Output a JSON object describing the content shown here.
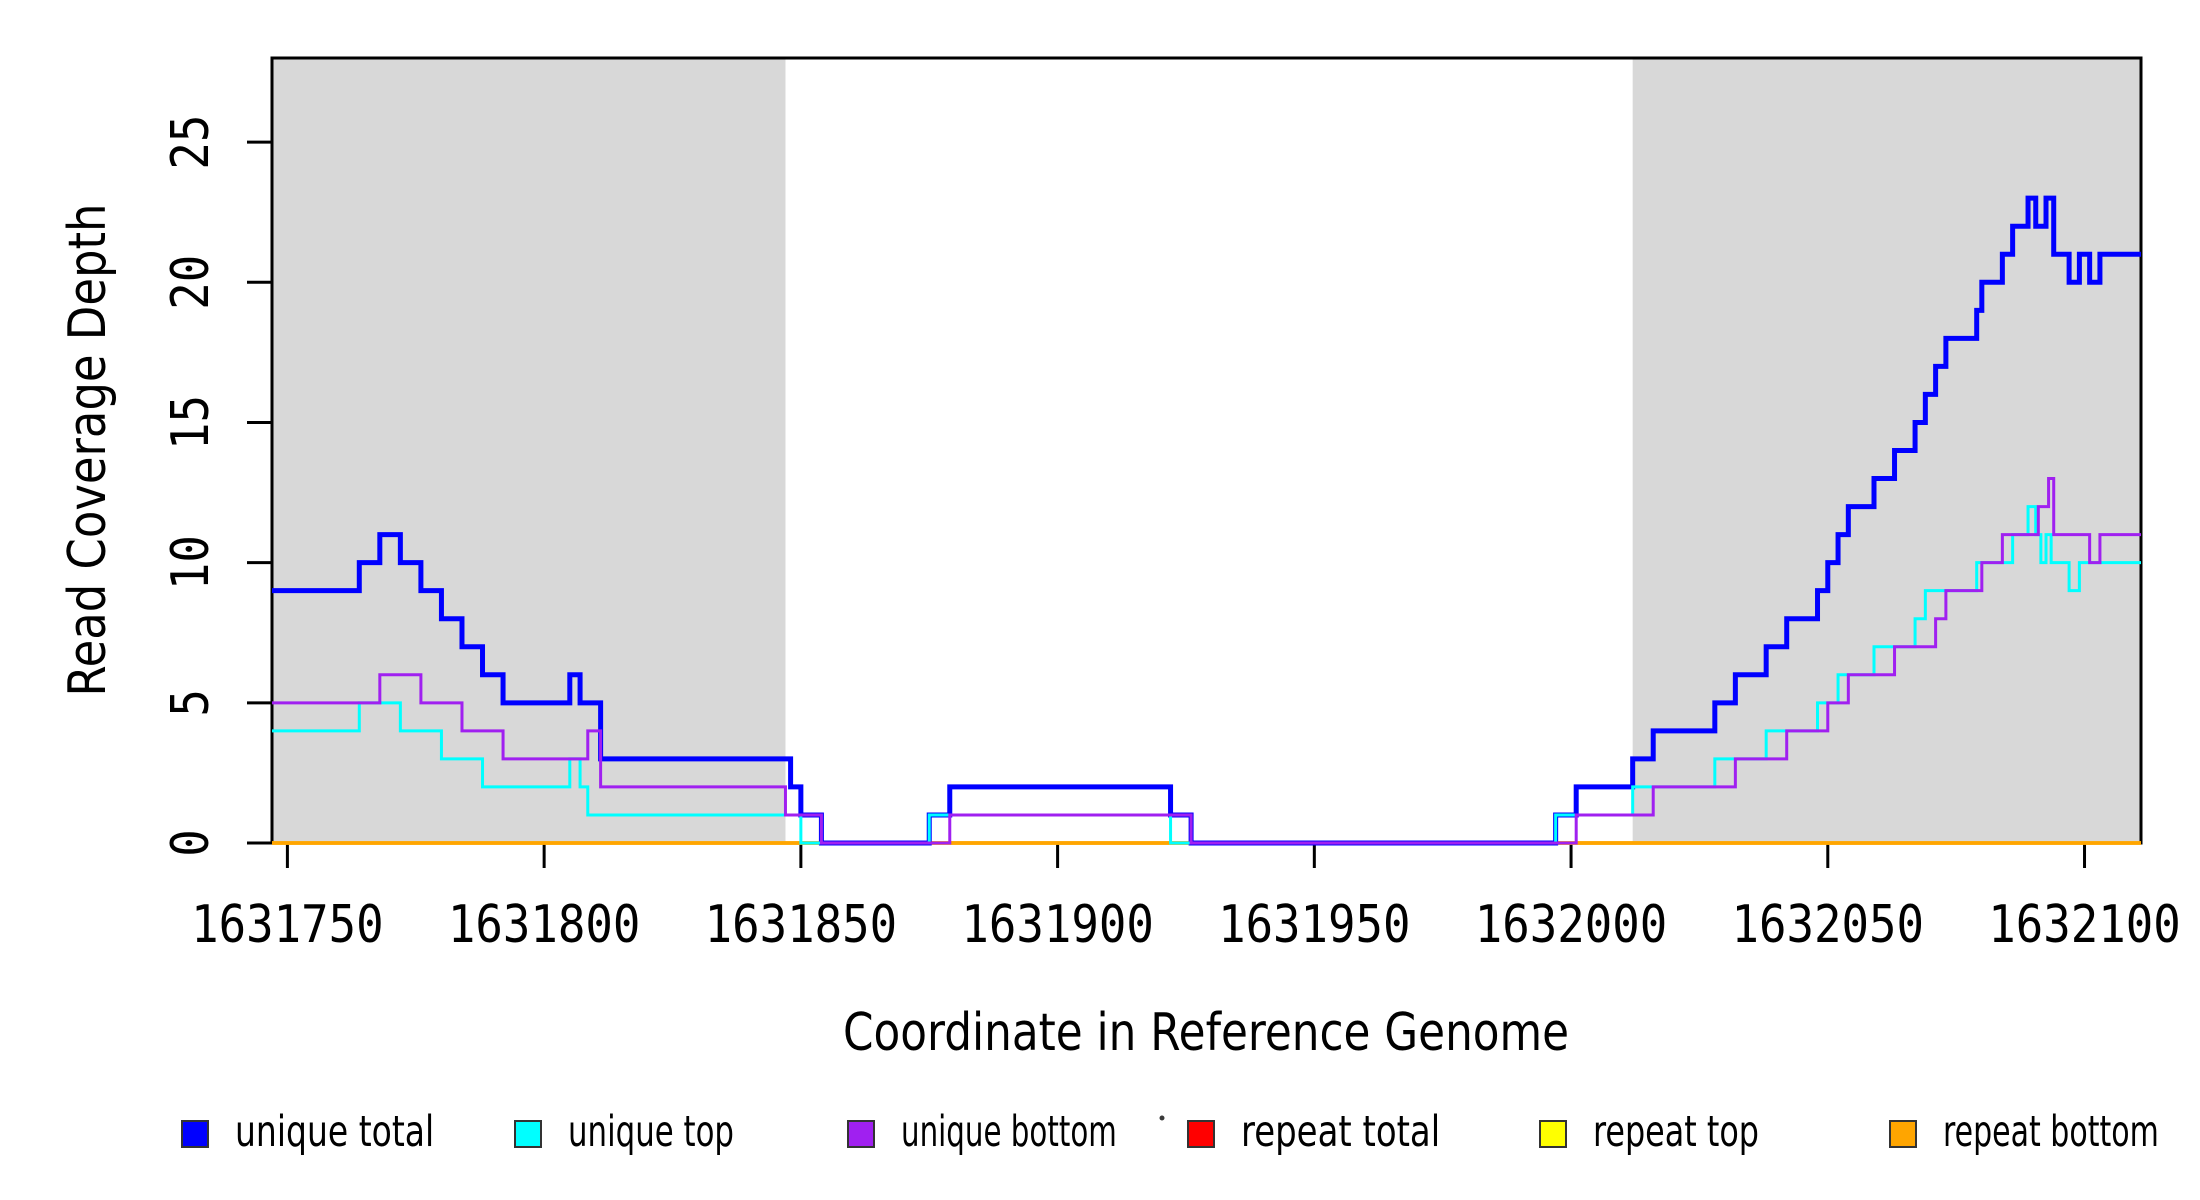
{
  "chart_data": {
    "type": "line",
    "subtype": "step-coverage",
    "title": "",
    "xlabel": "Coordinate in Reference Genome",
    "ylabel": "Read Coverage Depth",
    "xlim": [
      1631747,
      1632111
    ],
    "ylim": [
      0,
      28
    ],
    "x_ticks": [
      1631750,
      1631800,
      1631850,
      1631900,
      1631950,
      1632000,
      1632050,
      1632100
    ],
    "y_ticks": [
      0,
      5,
      10,
      15,
      20,
      25
    ],
    "grid": false,
    "legend_position": "bottom",
    "shade_color": "#D8D8D8",
    "shaded_regions": [
      [
        1631747,
        1631847
      ],
      [
        1632012,
        1632111
      ]
    ],
    "series": [
      {
        "name": "repeat total",
        "color": "#FF0000",
        "width": 3.5,
        "steps": [
          [
            1631747,
            0
          ]
        ]
      },
      {
        "name": "repeat top",
        "color": "#FFFF00",
        "width": 3.5,
        "steps": [
          [
            1631747,
            0
          ]
        ]
      },
      {
        "name": "repeat bottom",
        "color": "#FFA500",
        "width": 3.5,
        "steps": [
          [
            1631747,
            0
          ]
        ]
      },
      {
        "name": "unique total",
        "color": "#0000FF",
        "width": 5,
        "steps": [
          [
            1631747,
            9
          ],
          [
            1631764,
            10
          ],
          [
            1631768,
            11
          ],
          [
            1631772,
            10
          ],
          [
            1631776,
            9
          ],
          [
            1631780,
            8
          ],
          [
            1631784,
            7
          ],
          [
            1631788,
            6
          ],
          [
            1631792,
            5
          ],
          [
            1631805,
            6
          ],
          [
            1631807,
            5
          ],
          [
            1631811,
            3
          ],
          [
            1631848,
            2
          ],
          [
            1631850,
            1
          ],
          [
            1631854,
            0
          ],
          [
            1631875,
            1
          ],
          [
            1631879,
            2
          ],
          [
            1631922,
            1
          ],
          [
            1631926,
            0
          ],
          [
            1631997,
            1
          ],
          [
            1632001,
            2
          ],
          [
            1632012,
            3
          ],
          [
            1632016,
            4
          ],
          [
            1632028,
            5
          ],
          [
            1632032,
            6
          ],
          [
            1632038,
            7
          ],
          [
            1632042,
            8
          ],
          [
            1632048,
            9
          ],
          [
            1632050,
            10
          ],
          [
            1632052,
            11
          ],
          [
            1632054,
            12
          ],
          [
            1632059,
            13
          ],
          [
            1632063,
            14
          ],
          [
            1632067,
            15
          ],
          [
            1632069,
            16
          ],
          [
            1632071,
            17
          ],
          [
            1632073,
            18
          ],
          [
            1632079,
            19
          ],
          [
            1632080,
            20
          ],
          [
            1632084,
            21
          ],
          [
            1632086,
            22
          ],
          [
            1632089,
            23
          ],
          [
            1632090.5,
            22
          ],
          [
            1632092.5,
            23
          ],
          [
            1632094,
            21
          ],
          [
            1632097,
            20
          ],
          [
            1632099,
            21
          ],
          [
            1632101,
            20
          ],
          [
            1632103,
            21
          ]
        ]
      },
      {
        "name": "unique top",
        "color": "#00FFFF",
        "width": 3,
        "steps": [
          [
            1631747,
            4
          ],
          [
            1631764,
            5
          ],
          [
            1631772,
            4
          ],
          [
            1631780,
            3
          ],
          [
            1631788,
            2
          ],
          [
            1631805,
            3
          ],
          [
            1631807,
            2
          ],
          [
            1631808.5,
            1
          ],
          [
            1631850,
            0
          ],
          [
            1631875,
            1
          ],
          [
            1631922,
            0
          ],
          [
            1631997,
            1
          ],
          [
            1632012,
            2
          ],
          [
            1632028,
            3
          ],
          [
            1632038,
            4
          ],
          [
            1632048,
            5
          ],
          [
            1632052,
            6
          ],
          [
            1632059,
            7
          ],
          [
            1632067,
            8
          ],
          [
            1632069,
            9
          ],
          [
            1632079,
            10
          ],
          [
            1632086,
            11
          ],
          [
            1632089,
            12
          ],
          [
            1632090.5,
            11
          ],
          [
            1632091.5,
            10
          ],
          [
            1632092.5,
            11
          ],
          [
            1632093.5,
            10
          ],
          [
            1632097,
            9
          ],
          [
            1632099,
            10
          ]
        ]
      },
      {
        "name": "unique bottom",
        "color": "#A020F0",
        "width": 3,
        "steps": [
          [
            1631747,
            5
          ],
          [
            1631768,
            6
          ],
          [
            1631776,
            5
          ],
          [
            1631784,
            4
          ],
          [
            1631792,
            3
          ],
          [
            1631808.5,
            4
          ],
          [
            1631811,
            2
          ],
          [
            1631847,
            1
          ],
          [
            1631854,
            0
          ],
          [
            1631879,
            1
          ],
          [
            1631926,
            0
          ],
          [
            1632001,
            1
          ],
          [
            1632016,
            2
          ],
          [
            1632032,
            3
          ],
          [
            1632042,
            4
          ],
          [
            1632050,
            5
          ],
          [
            1632054,
            6
          ],
          [
            1632063,
            7
          ],
          [
            1632071,
            8
          ],
          [
            1632073,
            9
          ],
          [
            1632080,
            10
          ],
          [
            1632084,
            11
          ],
          [
            1632091,
            12
          ],
          [
            1632093,
            13
          ],
          [
            1632094,
            11
          ],
          [
            1632101,
            10
          ],
          [
            1632103,
            11
          ]
        ]
      }
    ],
    "legend": [
      {
        "label": "unique total",
        "color": "#0000FF"
      },
      {
        "label": "unique top",
        "color": "#00FFFF"
      },
      {
        "label": "unique bottom",
        "color": "#A020F0"
      },
      {
        "label": "repeat total",
        "color": "#FF0000"
      },
      {
        "label": "repeat top",
        "color": "#FFFF00"
      },
      {
        "label": "repeat bottom",
        "color": "#FFA500"
      }
    ],
    "stray_mark": [
      1162,
      1118
    ]
  }
}
